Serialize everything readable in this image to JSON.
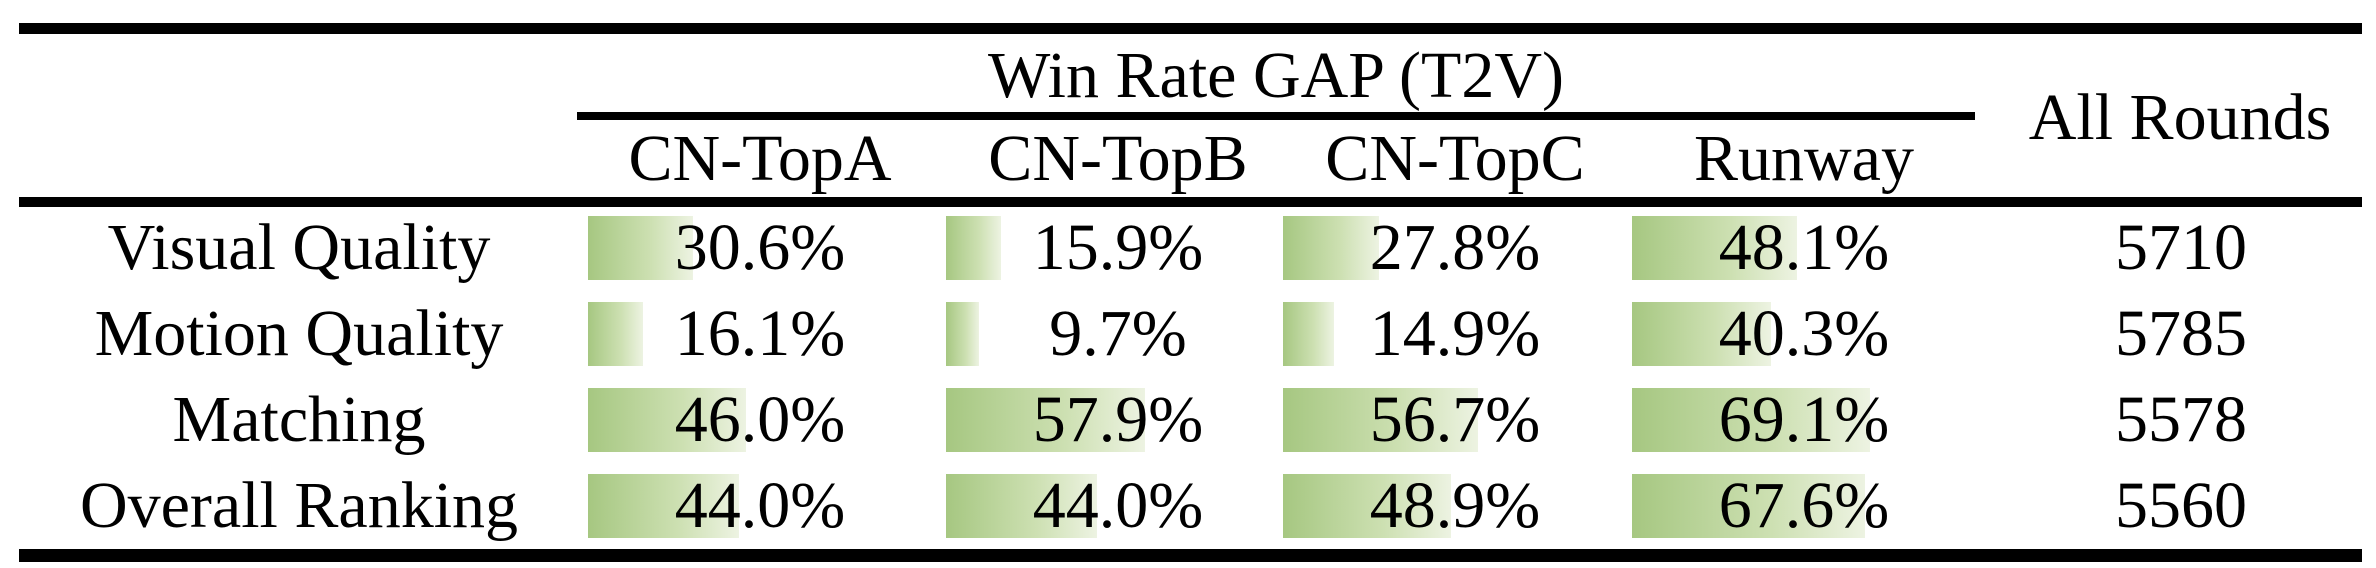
{
  "chart_data": {
    "type": "table",
    "title": "Win Rate GAP (T2V)",
    "columns": [
      "CN-TopA",
      "CN-TopB",
      "CN-TopC",
      "Runway",
      "All Rounds"
    ],
    "bar_color_start": "#a6c781",
    "bar_color_mid": "#cde0b2",
    "bar_color_end": "#edf3e2",
    "bar_scale_note": "cell bars drawn proportional to percentage, full cell width = 100%",
    "rows": [
      {
        "label": "Visual Quality",
        "cells": [
          {
            "value": 30.6,
            "text": "30.6%"
          },
          {
            "value": 15.9,
            "text": "15.9%"
          },
          {
            "value": 27.8,
            "text": "27.8%"
          },
          {
            "value": 48.1,
            "text": "48.1%"
          }
        ],
        "all_rounds": "5710"
      },
      {
        "label": "Motion Quality",
        "cells": [
          {
            "value": 16.1,
            "text": "16.1%"
          },
          {
            "value": 9.7,
            "text": "9.7%"
          },
          {
            "value": 14.9,
            "text": "14.9%"
          },
          {
            "value": 40.3,
            "text": "40.3%"
          }
        ],
        "all_rounds": "5785"
      },
      {
        "label": "Matching",
        "cells": [
          {
            "value": 46.0,
            "text": "46.0%"
          },
          {
            "value": 57.9,
            "text": "57.9%"
          },
          {
            "value": 56.7,
            "text": "56.7%"
          },
          {
            "value": 69.1,
            "text": "69.1%"
          }
        ],
        "all_rounds": "5578"
      },
      {
        "label": "Overall Ranking",
        "cells": [
          {
            "value": 44.0,
            "text": "44.0%"
          },
          {
            "value": 44.0,
            "text": "44.0%"
          },
          {
            "value": 48.9,
            "text": "48.9%"
          },
          {
            "value": 67.6,
            "text": "67.6%"
          }
        ],
        "all_rounds": "5560"
      }
    ]
  }
}
